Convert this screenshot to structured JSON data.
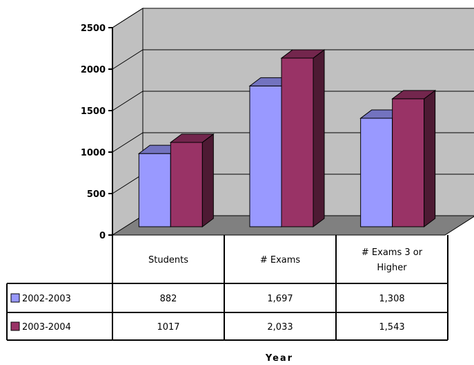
{
  "chart_data": {
    "type": "bar",
    "style": "3d-clustered-column-with-data-table",
    "categories": [
      "Students",
      "# Exams",
      "# Exams 3 or Higher"
    ],
    "category_lines": [
      [
        "Students"
      ],
      [
        "# Exams"
      ],
      [
        "# Exams 3 or",
        "Higher"
      ]
    ],
    "series": [
      {
        "name": "2002-2003",
        "values": [
          882,
          1697,
          1308
        ],
        "value_labels": [
          "882",
          "1,697",
          "1,308"
        ],
        "color": "#9999ff"
      },
      {
        "name": "2003-2004",
        "values": [
          1017,
          2033,
          1543
        ],
        "value_labels": [
          "1017",
          "2,033",
          "1,543"
        ],
        "color": "#993366"
      }
    ],
    "xlabel": "Year",
    "ylabel": "",
    "ylim": [
      0,
      2500
    ],
    "yticks": [
      0,
      500,
      1000,
      1500,
      2000,
      2500
    ],
    "wall_color": "#c0c0c0",
    "floor_color": "#808080",
    "grid": true,
    "legend": "data-table-left"
  }
}
